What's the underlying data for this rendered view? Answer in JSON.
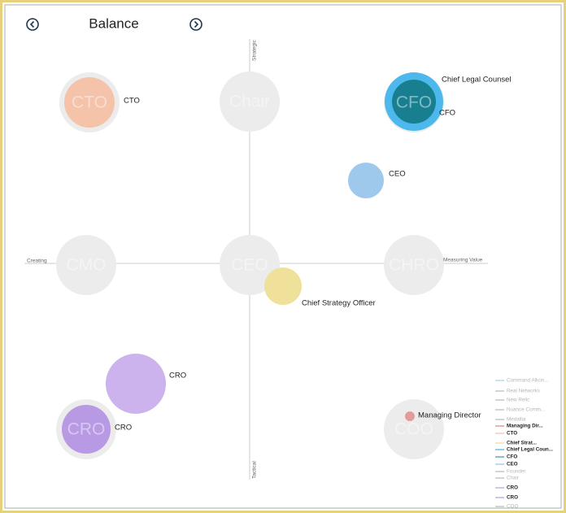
{
  "header": {
    "title": "Balance"
  },
  "axes": {
    "top": "Strategic",
    "bottom": "Tactical",
    "left": "Creating",
    "right": "Measuring Value"
  },
  "roles": [
    "CTO",
    "Chair",
    "CFO",
    "CMO",
    "CEO",
    "CHRO",
    "CRO",
    "COO"
  ],
  "bubbles": [
    {
      "label": "CTO"
    },
    {
      "label": "Chief Legal Counsel"
    },
    {
      "label": "CFO"
    },
    {
      "label": "CEO"
    },
    {
      "label": "Chief Strategy Officer"
    },
    {
      "label": "CRO"
    },
    {
      "label": "CRO"
    },
    {
      "label": "Managing Director"
    }
  ],
  "legend": [
    "Command Alkon...",
    "Real Networks",
    "New Relic",
    "Nuance Comm...",
    "Medallia",
    "Managing Dir...",
    "CTO",
    "Chief Strat...",
    "Chief Legal Coun...",
    "CFO",
    "CEO",
    "Founder",
    "Chair",
    "CRO",
    "CRO",
    "COO"
  ]
}
